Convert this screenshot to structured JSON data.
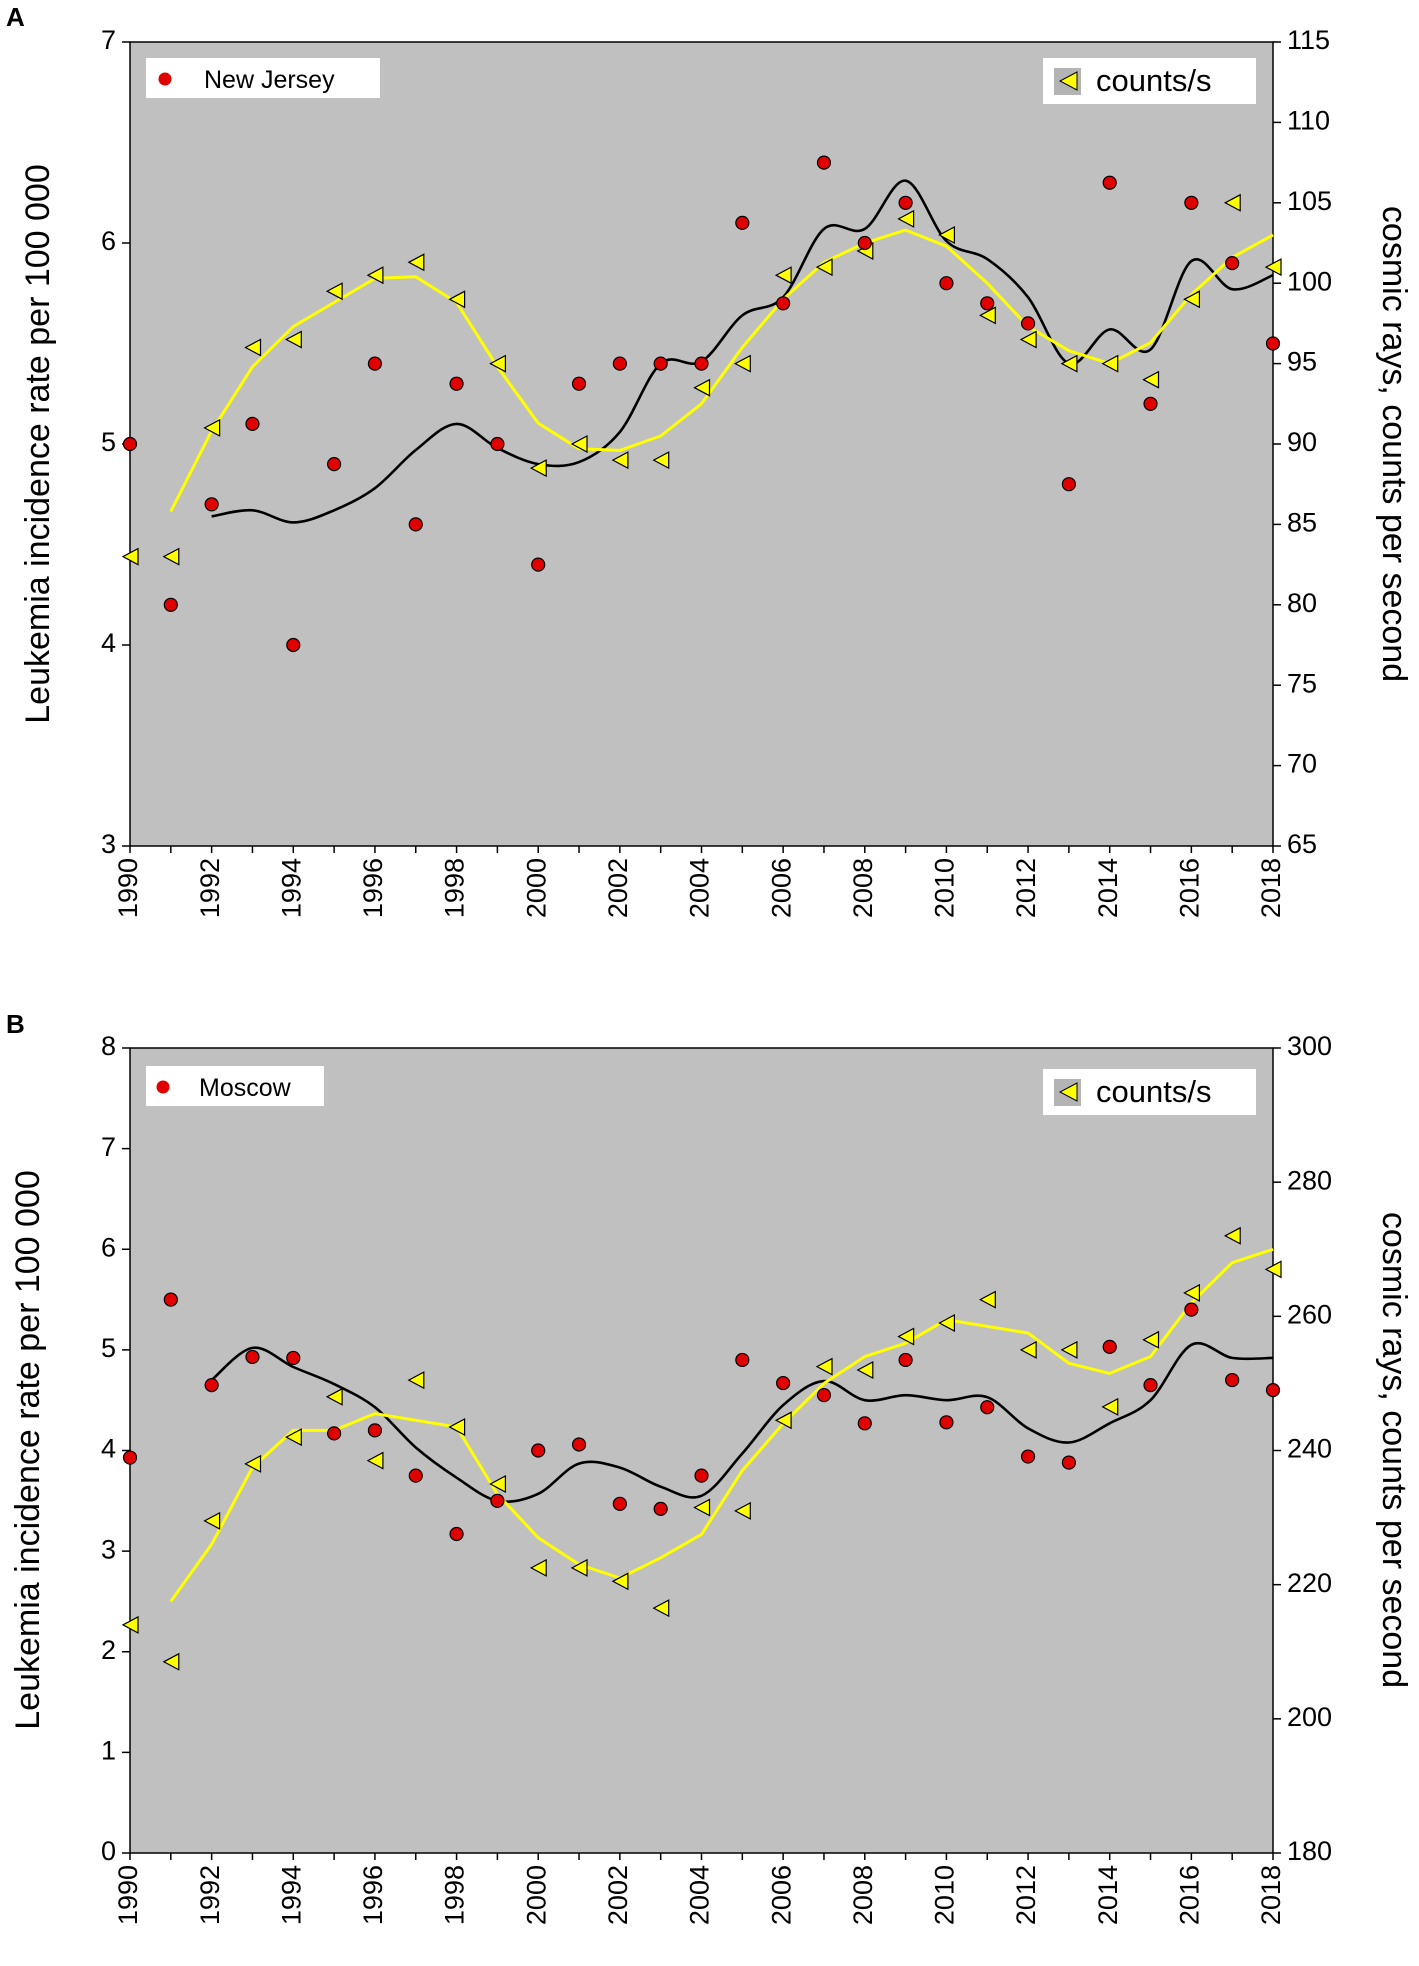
{
  "colors": {
    "plot_bg": "#c0c0c0",
    "incidence_marker": "#e00000",
    "incidence_marker_edge": "#000000",
    "cosmic_marker": "#ffff00",
    "cosmic_marker_edge": "#000000",
    "cosmic_trend": "#ffff00",
    "incidence_trend": "#000000"
  },
  "chart_data": [
    {
      "panel": "A",
      "type": "scatter",
      "left_ylabel": "Leukemia incidence rate per 100 000",
      "right_ylabel": "cosmic rays, counts per second",
      "left_ylim": [
        3,
        7
      ],
      "left_yticks": [
        3,
        4,
        5,
        6,
        7
      ],
      "right_ylim": [
        65,
        115
      ],
      "right_yticks": [
        65,
        70,
        75,
        80,
        85,
        90,
        95,
        100,
        105,
        110,
        115
      ],
      "xlim": [
        1990,
        2018
      ],
      "xticks": [
        1990,
        1992,
        1994,
        1996,
        1998,
        2000,
        2002,
        2004,
        2006,
        2008,
        2010,
        2012,
        2014,
        2016,
        2018
      ],
      "legend": {
        "incidence": "New Jersey",
        "cosmic": "counts/s"
      },
      "years": [
        1990,
        1991,
        1992,
        1993,
        1994,
        1995,
        1996,
        1997,
        1998,
        1999,
        2000,
        2001,
        2002,
        2003,
        2004,
        2005,
        2006,
        2007,
        2008,
        2009,
        2010,
        2011,
        2012,
        2013,
        2014,
        2015,
        2016,
        2017,
        2018
      ],
      "incidence": [
        5.0,
        4.2,
        4.7,
        5.1,
        4.0,
        4.9,
        5.4,
        4.6,
        5.3,
        5.0,
        4.4,
        5.3,
        5.4,
        5.4,
        5.4,
        6.1,
        5.7,
        6.4,
        6.0,
        6.2,
        5.8,
        5.7,
        5.6,
        4.8,
        6.3,
        5.2,
        6.2,
        5.9,
        5.5
      ],
      "cosmic": [
        83,
        83,
        91,
        96,
        96.5,
        99.5,
        100.5,
        101.3,
        99,
        95,
        88.5,
        90,
        89,
        89,
        93.5,
        95,
        100.5,
        101,
        102,
        104,
        103,
        98,
        96.5,
        95,
        95,
        94,
        99,
        105,
        101
      ],
      "cosmic_trend_years": [
        1991,
        1992,
        1993,
        1994,
        1995,
        1996,
        1997,
        1998,
        1999,
        2000,
        2001,
        2002,
        2003,
        2004,
        2005,
        2006,
        2007,
        2008,
        2009,
        2010,
        2011,
        2012,
        2013,
        2014,
        2015,
        2016,
        2017,
        2018
      ],
      "cosmic_trend": [
        85.8,
        90.8,
        94.8,
        97.3,
        98.8,
        100.3,
        100.4,
        98.8,
        94.8,
        91.3,
        89.7,
        89.6,
        90.5,
        92.5,
        96.0,
        99.0,
        101.3,
        102.5,
        103.3,
        102.3,
        100.0,
        97.3,
        95.8,
        95.0,
        96.3,
        99.3,
        101.6,
        103.0
      ],
      "incidence_trend_years": [
        1992,
        1993,
        1994,
        1995,
        1996,
        1997,
        1998,
        1999,
        2000,
        2001,
        2002,
        2003,
        2004,
        2005,
        2006,
        2007,
        2008,
        2009,
        2010,
        2011,
        2012,
        2013,
        2014,
        2015,
        2016,
        2017,
        2018
      ],
      "incidence_trend": [
        4.64,
        4.67,
        4.61,
        4.67,
        4.78,
        4.97,
        5.1,
        4.98,
        4.9,
        4.91,
        5.06,
        5.4,
        5.41,
        5.64,
        5.73,
        6.07,
        6.07,
        6.31,
        6.01,
        5.92,
        5.73,
        5.4,
        5.57,
        5.47,
        5.91,
        5.77,
        5.84
      ]
    },
    {
      "panel": "B",
      "type": "scatter",
      "left_ylabel": "Leukemia incidence rate per 100 000",
      "right_ylabel": "cosmic rays, counts per second",
      "left_ylim": [
        0,
        8
      ],
      "left_yticks": [
        0,
        1,
        2,
        3,
        4,
        5,
        6,
        7,
        8
      ],
      "right_ylim": [
        180,
        300
      ],
      "right_yticks": [
        180,
        200,
        220,
        240,
        260,
        280,
        300
      ],
      "xlim": [
        1990,
        2018
      ],
      "xticks": [
        1990,
        1992,
        1994,
        1996,
        1998,
        2000,
        2002,
        2004,
        2006,
        2008,
        2010,
        2012,
        2014,
        2016,
        2018
      ],
      "legend": {
        "incidence": "Moscow",
        "cosmic": "counts/s"
      },
      "years": [
        1990,
        1991,
        1992,
        1993,
        1994,
        1995,
        1996,
        1997,
        1998,
        1999,
        2000,
        2001,
        2002,
        2003,
        2004,
        2005,
        2006,
        2007,
        2008,
        2009,
        2010,
        2011,
        2012,
        2013,
        2014,
        2015,
        2016,
        2017,
        2018
      ],
      "incidence": [
        3.93,
        5.5,
        4.65,
        4.93,
        4.92,
        4.17,
        4.2,
        3.75,
        3.17,
        3.5,
        4.0,
        4.06,
        3.47,
        3.42,
        3.75,
        4.9,
        4.67,
        4.55,
        4.27,
        4.9,
        4.28,
        4.43,
        3.94,
        3.88,
        5.03,
        4.65,
        5.4,
        4.7,
        4.6
      ],
      "cosmic": [
        214,
        208.5,
        229.5,
        238,
        242,
        248,
        238.5,
        250.5,
        243.5,
        235,
        222.5,
        222.5,
        220.5,
        216.5,
        231.5,
        231,
        244.5,
        252.5,
        252,
        257,
        259,
        262.5,
        255,
        255,
        246.5,
        256.5,
        263.5,
        272,
        267
      ],
      "cosmic_trend_years": [
        1991,
        1992,
        1993,
        1994,
        1995,
        1996,
        1997,
        1998,
        1999,
        2000,
        2001,
        2002,
        2003,
        2004,
        2005,
        2006,
        2007,
        2008,
        2009,
        2010,
        2011,
        2012,
        2013,
        2014,
        2015,
        2016,
        2017,
        2018
      ],
      "cosmic_trend": [
        217.5,
        226.0,
        237.5,
        243.0,
        243.0,
        245.5,
        244.5,
        243.5,
        233.5,
        227.0,
        223.0,
        221.0,
        224.0,
        227.5,
        237.0,
        244.0,
        250.0,
        254.0,
        256.0,
        259.5,
        258.5,
        257.5,
        253.0,
        251.5,
        254.0,
        262.0,
        268.0,
        270.0
      ],
      "incidence_trend_years": [
        1992,
        1993,
        1994,
        1995,
        1996,
        1997,
        1998,
        1999,
        2000,
        2001,
        2002,
        2003,
        2004,
        2005,
        2006,
        2007,
        2008,
        2009,
        2010,
        2011,
        2012,
        2013,
        2014,
        2015,
        2016,
        2017,
        2018
      ],
      "incidence_trend": [
        4.7,
        5.02,
        4.83,
        4.66,
        4.43,
        4.03,
        3.73,
        3.5,
        3.57,
        3.87,
        3.83,
        3.64,
        3.55,
        3.97,
        4.45,
        4.69,
        4.5,
        4.55,
        4.5,
        4.53,
        4.22,
        4.08,
        4.27,
        4.5,
        5.05,
        4.92,
        4.92
      ]
    }
  ]
}
